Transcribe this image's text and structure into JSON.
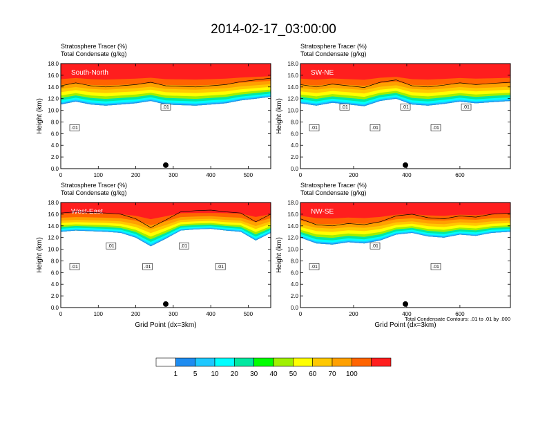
{
  "page": {
    "title": "2014-02-17_03:00:00"
  },
  "colorbar": {
    "colors": [
      "#ffffff",
      "#1e8cf0",
      "#1ec8ff",
      "#00ffff",
      "#00e8a0",
      "#00ff00",
      "#a0f000",
      "#ffff00",
      "#ffc800",
      "#ffa000",
      "#ff6400",
      "#ff1e1e"
    ],
    "labels": [
      "1",
      "5",
      "10",
      "20",
      "30",
      "40",
      "50",
      "60",
      "70",
      "100"
    ]
  },
  "footnote": "Total Condensate Contours: .01 to .01 by .000",
  "chart_data": [
    {
      "type": "heatmap",
      "label": "South-North",
      "title_lines": [
        "Stratosphere Tracer   (%)",
        "Total Condensate   (g/kg)"
      ],
      "ylabel": "Height (km)",
      "xlabel": "",
      "xlim": [
        0,
        560
      ],
      "ylim": [
        0,
        18
      ],
      "xticks": [
        "0",
        "100",
        "200",
        "300",
        "400",
        "500"
      ],
      "xtick_values": [
        0,
        100,
        200,
        300,
        400,
        500
      ],
      "yticks": [
        "0.0",
        "2.0",
        "4.0",
        "6.0",
        "8.0",
        "10.0",
        "12.0",
        "14.0",
        "16.0",
        "18.0"
      ],
      "profile": {
        "x": [
          0,
          40,
          80,
          120,
          160,
          200,
          240,
          280,
          320,
          360,
          400,
          440,
          480,
          520,
          560
        ],
        "bottom": [
          11.0,
          11.5,
          11.0,
          10.8,
          11.0,
          11.2,
          11.6,
          11.0,
          10.9,
          10.8,
          11.0,
          11.2,
          11.7,
          12.0,
          12.3
        ]
      },
      "contour_labels": [
        ".01",
        ".01"
      ]
    },
    {
      "type": "heatmap",
      "label": "SW-NE",
      "title_lines": [
        "Stratosphere Tracer   (%)",
        "Total Condensate   (g/kg)"
      ],
      "ylabel": "Height (km)",
      "xlabel": "",
      "xlim": [
        0,
        790
      ],
      "ylim": [
        0,
        18
      ],
      "xticks": [
        "0",
        "200",
        "400",
        "600"
      ],
      "xtick_values": [
        0,
        200,
        400,
        600
      ],
      "yticks": [
        "0.0",
        "2.0",
        "4.0",
        "6.0",
        "8.0",
        "10.0",
        "12.0",
        "14.0",
        "16.0",
        "18.0"
      ],
      "profile": {
        "x": [
          0,
          60,
          120,
          180,
          240,
          300,
          360,
          420,
          480,
          540,
          600,
          660,
          720,
          790
        ],
        "bottom": [
          11.2,
          10.8,
          11.3,
          11.0,
          10.7,
          11.6,
          12.0,
          11.0,
          10.8,
          11.1,
          11.5,
          11.2,
          11.4,
          11.6
        ]
      },
      "contour_labels": [
        ".01",
        ".01",
        ".01",
        ".01",
        ".01",
        ".01"
      ]
    },
    {
      "type": "heatmap",
      "label": "West-East",
      "title_lines": [
        "Stratosphere Tracer   (%)",
        "Total Condensate   (g/kg)"
      ],
      "ylabel": "Height (km)",
      "xlabel": "Grid Point (dx=3km)",
      "xlim": [
        0,
        560
      ],
      "ylim": [
        0,
        18
      ],
      "xticks": [
        "0",
        "100",
        "200",
        "300",
        "400",
        "500"
      ],
      "xtick_values": [
        0,
        100,
        200,
        300,
        400,
        500
      ],
      "yticks": [
        "0.0",
        "2.0",
        "4.0",
        "6.0",
        "8.0",
        "10.0",
        "12.0",
        "14.0",
        "16.0",
        "18.0"
      ],
      "profile": {
        "x": [
          0,
          40,
          80,
          120,
          160,
          200,
          240,
          280,
          320,
          360,
          400,
          440,
          480,
          520,
          560
        ],
        "bottom": [
          13.0,
          13.2,
          13.1,
          13.0,
          12.8,
          12.0,
          10.5,
          11.8,
          13.2,
          13.4,
          13.5,
          13.2,
          13.0,
          11.5,
          12.8
        ]
      },
      "contour_labels": [
        ".01",
        ".01",
        ".01",
        ".01",
        ".01"
      ]
    },
    {
      "type": "heatmap",
      "label": "NW-SE",
      "title_lines": [
        "Stratosphere Tracer   (%)",
        "Total Condensate   (g/kg)"
      ],
      "ylabel": "Height (km)",
      "xlabel": "Grid Point (dx=3km)",
      "xlim": [
        0,
        790
      ],
      "ylim": [
        0,
        18
      ],
      "xticks": [
        "0",
        "200",
        "400",
        "600"
      ],
      "xtick_values": [
        0,
        200,
        400,
        600
      ],
      "yticks": [
        "0.0",
        "2.0",
        "4.0",
        "6.0",
        "8.0",
        "10.0",
        "12.0",
        "14.0",
        "16.0",
        "18.0"
      ],
      "profile": {
        "x": [
          0,
          60,
          120,
          180,
          240,
          300,
          360,
          420,
          480,
          540,
          600,
          660,
          720,
          790
        ],
        "bottom": [
          12.0,
          11.0,
          10.8,
          11.2,
          11.0,
          11.5,
          12.5,
          12.8,
          12.2,
          12.0,
          12.5,
          12.3,
          12.8,
          13.0
        ]
      },
      "contour_labels": [
        ".01",
        ".01",
        ".01"
      ]
    }
  ]
}
